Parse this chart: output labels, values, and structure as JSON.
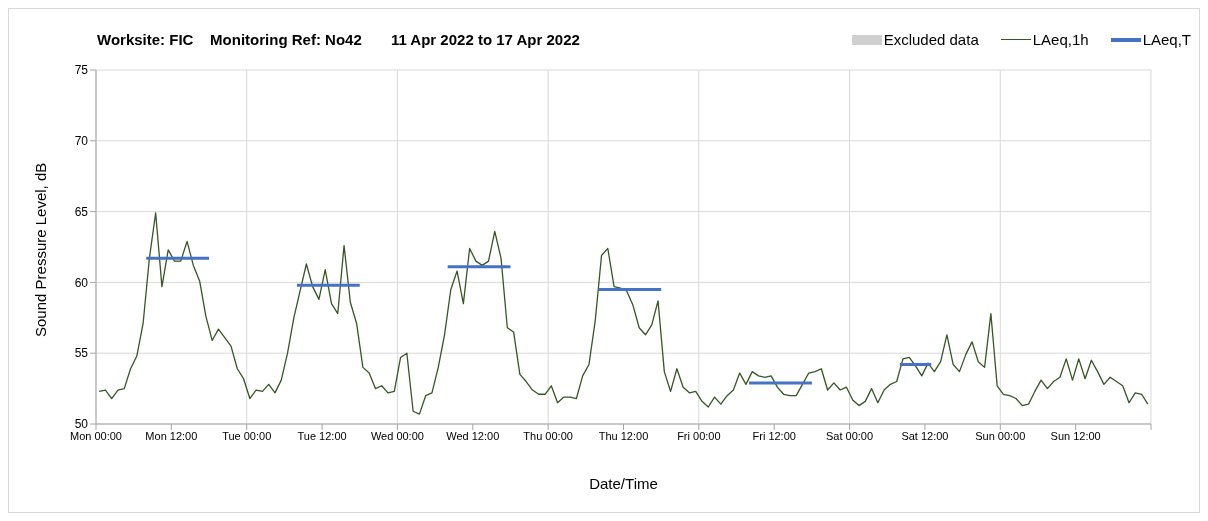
{
  "chart_data": {
    "type": "line",
    "title": "Worksite: FIC    Monitoring Ref: No42       11 Apr 2022 to 17 Apr 2022",
    "xlabel": "Date/Time",
    "ylabel": "Sound Pressure Level, dB",
    "xlim": [
      "2022-04-11T00:00",
      "2022-04-18T00:00"
    ],
    "xticks": [
      {
        "value": "2022-04-11T00:00",
        "label": "Mon 00:00"
      },
      {
        "value": "2022-04-11T12:00",
        "label": "Mon 12:00"
      },
      {
        "value": "2022-04-12T00:00",
        "label": "Tue 00:00"
      },
      {
        "value": "2022-04-12T12:00",
        "label": "Tue 12:00"
      },
      {
        "value": "2022-04-13T00:00",
        "label": "Wed 00:00"
      },
      {
        "value": "2022-04-13T12:00",
        "label": "Wed 12:00"
      },
      {
        "value": "2022-04-14T00:00",
        "label": "Thu 00:00"
      },
      {
        "value": "2022-04-14T12:00",
        "label": "Thu 12:00"
      },
      {
        "value": "2022-04-15T00:00",
        "label": "Fri 00:00"
      },
      {
        "value": "2022-04-15T12:00",
        "label": "Fri 12:00"
      },
      {
        "value": "2022-04-16T00:00",
        "label": "Sat 00:00"
      },
      {
        "value": "2022-04-16T12:00",
        "label": "Sat 12:00"
      },
      {
        "value": "2022-04-17T00:00",
        "label": "Sun 00:00"
      },
      {
        "value": "2022-04-17T12:00",
        "label": "Sun 12:00"
      },
      {
        "value": "2022-04-18T00:00",
        "label": null
      }
    ],
    "ylim": [
      50,
      75
    ],
    "yticks": [
      50,
      55,
      60,
      65,
      70,
      75
    ],
    "grid": true,
    "legend": "top right",
    "x": [
      "2022-04-11T00:30",
      "2022-04-11T01:30",
      "2022-04-11T02:30",
      "2022-04-11T03:30",
      "2022-04-11T04:30",
      "2022-04-11T05:30",
      "2022-04-11T06:30",
      "2022-04-11T07:30",
      "2022-04-11T08:30",
      "2022-04-11T09:30",
      "2022-04-11T10:30",
      "2022-04-11T11:30",
      "2022-04-11T12:30",
      "2022-04-11T13:30",
      "2022-04-11T14:30",
      "2022-04-11T15:30",
      "2022-04-11T16:30",
      "2022-04-11T17:30",
      "2022-04-11T18:30",
      "2022-04-11T19:30",
      "2022-04-11T20:30",
      "2022-04-11T21:30",
      "2022-04-11T22:30",
      "2022-04-11T23:30",
      "2022-04-12T00:30",
      "2022-04-12T01:30",
      "2022-04-12T02:30",
      "2022-04-12T03:30",
      "2022-04-12T04:30",
      "2022-04-12T05:30",
      "2022-04-12T06:30",
      "2022-04-12T07:30",
      "2022-04-12T08:30",
      "2022-04-12T09:30",
      "2022-04-12T10:30",
      "2022-04-12T11:30",
      "2022-04-12T12:30",
      "2022-04-12T13:30",
      "2022-04-12T14:30",
      "2022-04-12T15:30",
      "2022-04-12T16:30",
      "2022-04-12T17:30",
      "2022-04-12T18:30",
      "2022-04-12T19:30",
      "2022-04-12T20:30",
      "2022-04-12T21:30",
      "2022-04-12T22:30",
      "2022-04-12T23:30",
      "2022-04-13T00:30",
      "2022-04-13T01:30",
      "2022-04-13T02:30",
      "2022-04-13T03:30",
      "2022-04-13T04:30",
      "2022-04-13T05:30",
      "2022-04-13T06:30",
      "2022-04-13T07:30",
      "2022-04-13T08:30",
      "2022-04-13T09:30",
      "2022-04-13T10:30",
      "2022-04-13T11:30",
      "2022-04-13T12:30",
      "2022-04-13T13:30",
      "2022-04-13T14:30",
      "2022-04-13T15:30",
      "2022-04-13T16:30",
      "2022-04-13T17:30",
      "2022-04-13T18:30",
      "2022-04-13T19:30",
      "2022-04-13T20:30",
      "2022-04-13T21:30",
      "2022-04-13T22:30",
      "2022-04-13T23:30",
      "2022-04-14T00:30",
      "2022-04-14T01:30",
      "2022-04-14T02:30",
      "2022-04-14T03:30",
      "2022-04-14T04:30",
      "2022-04-14T05:30",
      "2022-04-14T06:30",
      "2022-04-14T07:30",
      "2022-04-14T08:30",
      "2022-04-14T09:30",
      "2022-04-14T10:30",
      "2022-04-14T11:30",
      "2022-04-14T12:30",
      "2022-04-14T13:30",
      "2022-04-14T14:30",
      "2022-04-14T15:30",
      "2022-04-14T16:30",
      "2022-04-14T17:30",
      "2022-04-14T18:30",
      "2022-04-14T19:30",
      "2022-04-14T20:30",
      "2022-04-14T21:30",
      "2022-04-14T22:30",
      "2022-04-14T23:30",
      "2022-04-15T00:30",
      "2022-04-15T01:30",
      "2022-04-15T02:30",
      "2022-04-15T03:30",
      "2022-04-15T04:30",
      "2022-04-15T05:30",
      "2022-04-15T06:30",
      "2022-04-15T07:30",
      "2022-04-15T08:30",
      "2022-04-15T09:30",
      "2022-04-15T10:30",
      "2022-04-15T11:30",
      "2022-04-15T12:30",
      "2022-04-15T13:30",
      "2022-04-15T14:30",
      "2022-04-15T15:30",
      "2022-04-15T16:30",
      "2022-04-15T17:30",
      "2022-04-15T18:30",
      "2022-04-15T19:30",
      "2022-04-15T20:30",
      "2022-04-15T21:30",
      "2022-04-15T22:30",
      "2022-04-15T23:30",
      "2022-04-16T00:30",
      "2022-04-16T01:30",
      "2022-04-16T02:30",
      "2022-04-16T03:30",
      "2022-04-16T04:30",
      "2022-04-16T05:30",
      "2022-04-16T06:30",
      "2022-04-16T07:30",
      "2022-04-16T08:30",
      "2022-04-16T09:30",
      "2022-04-16T10:30",
      "2022-04-16T11:30",
      "2022-04-16T12:30",
      "2022-04-16T13:30",
      "2022-04-16T14:30",
      "2022-04-16T15:30",
      "2022-04-16T16:30",
      "2022-04-16T17:30",
      "2022-04-16T18:30",
      "2022-04-16T19:30",
      "2022-04-16T20:30",
      "2022-04-16T21:30",
      "2022-04-16T22:30",
      "2022-04-16T23:30",
      "2022-04-17T00:30",
      "2022-04-17T01:30",
      "2022-04-17T02:30",
      "2022-04-17T03:30",
      "2022-04-17T04:30",
      "2022-04-17T05:30",
      "2022-04-17T06:30",
      "2022-04-17T07:30",
      "2022-04-17T08:30",
      "2022-04-17T09:30",
      "2022-04-17T10:30",
      "2022-04-17T11:30",
      "2022-04-17T12:30",
      "2022-04-17T13:30",
      "2022-04-17T14:30",
      "2022-04-17T15:30",
      "2022-04-17T16:30",
      "2022-04-17T17:30",
      "2022-04-17T18:30",
      "2022-04-17T19:30",
      "2022-04-17T20:30",
      "2022-04-17T21:30",
      "2022-04-17T22:30",
      "2022-04-17T23:30"
    ],
    "series": [
      {
        "name": "Excluded data",
        "type": "bar",
        "color": "#d0d0d0",
        "values": [
          null,
          null,
          null,
          null,
          null,
          null,
          null,
          null,
          null,
          null,
          null,
          null,
          null,
          null,
          null,
          null,
          null,
          null,
          null,
          null,
          null,
          null,
          null,
          null,
          null,
          null,
          null,
          null,
          null,
          null,
          null,
          null,
          null,
          null,
          null,
          null,
          null,
          null,
          null,
          null,
          null,
          null,
          null,
          null,
          null,
          null,
          null,
          null,
          null,
          null,
          null,
          null,
          null,
          null,
          null,
          null,
          null,
          null,
          null,
          null,
          null,
          null,
          null,
          null,
          null,
          null,
          null,
          null,
          null,
          null,
          null,
          null,
          null,
          null,
          null,
          null,
          null,
          null,
          null,
          null,
          null,
          null,
          null,
          null,
          null,
          null,
          null,
          null,
          null,
          null,
          null,
          null,
          null,
          null,
          null,
          null,
          null,
          null,
          null,
          null,
          null,
          null,
          null,
          null,
          null,
          null,
          null,
          null,
          null,
          null,
          null,
          null,
          null,
          null,
          null,
          null,
          null,
          null,
          null,
          null,
          null,
          null,
          null,
          null,
          null,
          null,
          null,
          null,
          null,
          null,
          null,
          null,
          null,
          null,
          null,
          null,
          null,
          null,
          null,
          null,
          null,
          null,
          null,
          null,
          null,
          null,
          null,
          null,
          null,
          null,
          null,
          null,
          null,
          null,
          null,
          null,
          null,
          null,
          null,
          null,
          null,
          null,
          null,
          null,
          null,
          null,
          null,
          null
        ]
      },
      {
        "name": "LAeq,1h",
        "color": "#375623",
        "values": [
          52.3,
          52.4,
          51.8,
          52.4,
          52.5,
          53.9,
          54.8,
          57.1,
          61.7,
          64.9,
          59.7,
          62.3,
          61.5,
          61.5,
          62.9,
          61.2,
          60.1,
          57.6,
          55.9,
          56.7,
          56.1,
          55.5,
          53.9,
          53.2,
          51.8,
          52.4,
          52.3,
          52.8,
          52.2,
          53.1,
          55.0,
          57.5,
          59.4,
          61.3,
          59.7,
          58.8,
          60.9,
          58.5,
          57.8,
          62.6,
          58.6,
          57.1,
          54.0,
          53.6,
          52.5,
          52.7,
          52.2,
          52.3,
          54.7,
          55.0,
          50.9,
          50.7,
          52.0,
          52.2,
          54.0,
          56.3,
          59.5,
          60.8,
          58.5,
          62.4,
          61.5,
          61.2,
          61.5,
          63.6,
          61.7,
          56.8,
          56.5,
          53.5,
          53.0,
          52.4,
          52.1,
          52.1,
          52.7,
          51.5,
          51.9,
          51.9,
          51.8,
          53.4,
          54.2,
          57.3,
          61.9,
          62.4,
          59.7,
          59.6,
          59.4,
          58.4,
          56.8,
          56.3,
          57.0,
          58.7,
          53.7,
          52.3,
          53.9,
          52.6,
          52.2,
          52.3,
          51.6,
          51.2,
          51.9,
          51.4,
          52.0,
          52.4,
          53.6,
          52.8,
          53.7,
          53.4,
          53.3,
          53.4,
          52.6,
          52.1,
          52.0,
          52.0,
          52.8,
          53.6,
          53.7,
          53.9,
          52.4,
          52.9,
          52.4,
          52.6,
          51.7,
          51.3,
          51.6,
          52.5,
          51.5,
          52.4,
          52.8,
          53.0,
          54.6,
          54.7,
          54.1,
          53.4,
          54.3,
          53.7,
          54.4,
          56.3,
          54.2,
          53.7,
          54.9,
          55.8,
          54.4,
          54.0,
          57.8,
          52.7,
          52.1,
          52.0,
          51.8,
          51.3,
          51.4,
          52.3,
          53.1,
          52.5,
          53.0,
          53.3,
          54.6,
          53.1,
          54.6,
          53.2,
          54.5,
          53.7,
          52.8,
          53.3,
          53.0,
          52.7,
          51.5,
          52.2,
          52.1,
          51.4
        ]
      },
      {
        "name": "LAeq,T",
        "type": "line",
        "color": "#4472c4",
        "x": [
          "2022-04-11T08:00",
          "2022-04-11T18:00",
          "2022-04-12T00:00",
          "2022-04-12T08:00",
          "2022-04-12T18:00",
          "2022-04-13T00:00",
          "2022-04-13T08:00",
          "2022-04-13T18:00",
          "2022-04-14T00:00",
          "2022-04-14T08:00",
          "2022-04-14T18:00",
          "2022-04-15T00:00",
          "2022-04-15T08:00",
          "2022-04-15T18:00",
          "2022-04-16T00:00",
          "2022-04-16T08:00",
          "2022-04-16T13:00"
        ],
        "values": [
          61.7,
          61.7,
          null,
          59.8,
          59.8,
          null,
          61.1,
          61.1,
          null,
          59.5,
          59.5,
          null,
          52.9,
          52.9,
          null,
          54.2,
          54.2
        ]
      }
    ]
  }
}
